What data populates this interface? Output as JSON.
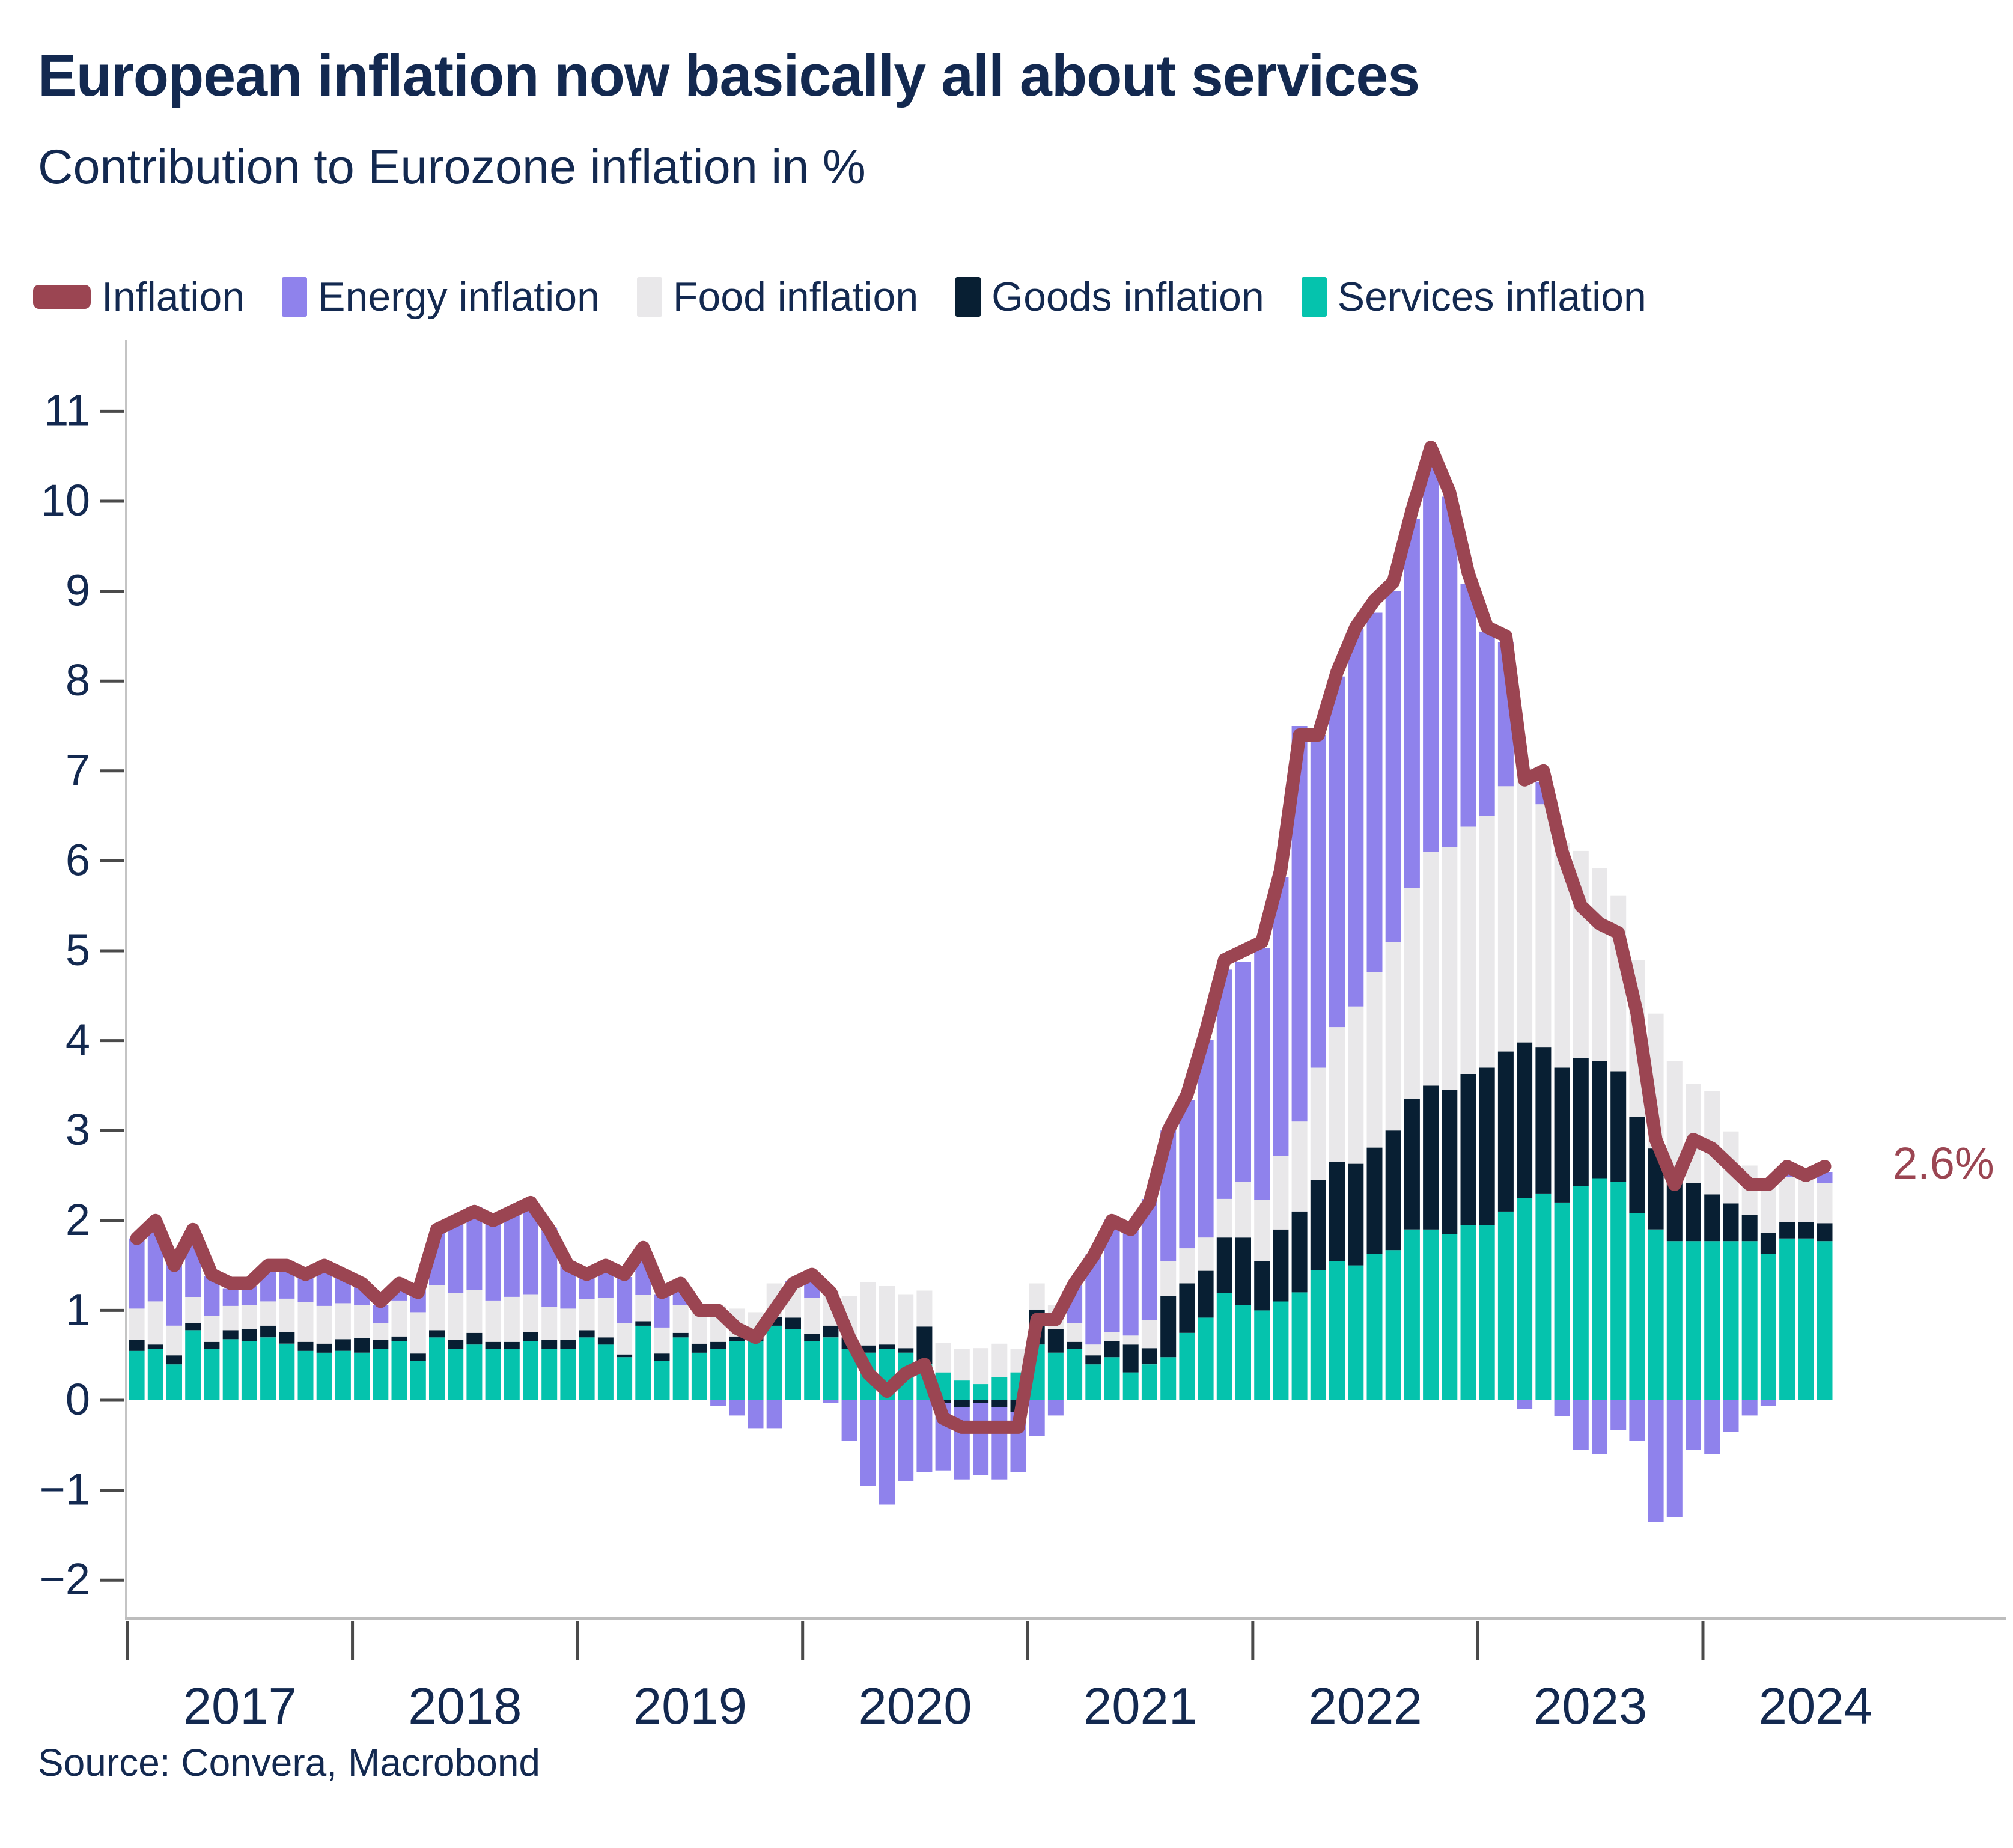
{
  "header": {
    "title": "European inflation now basically all about services",
    "subtitle": "Contribution to Eurozone inflation in %"
  },
  "legend": {
    "items": [
      {
        "label": "Inflation",
        "color": "#9b4552",
        "marker": "line"
      },
      {
        "label": "Energy inflation",
        "color": "#8f82ec",
        "marker": "box"
      },
      {
        "label": "Food inflation",
        "color": "#e9e8ea",
        "marker": "box"
      },
      {
        "label": "Goods inflation",
        "color": "#081f33",
        "marker": "box"
      },
      {
        "label": "Services inflation",
        "color": "#05c3ad",
        "marker": "box"
      }
    ]
  },
  "annotation": {
    "latest_value_label": "2.6%",
    "color": "#9b4552"
  },
  "source_text": "Source: Convera, Macrobond",
  "chart_data": {
    "type": "bar",
    "stacked": true,
    "title": "European inflation now basically all about services",
    "subtitle": "Contribution to Eurozone inflation in %",
    "ylabel": "Contribution to Eurozone inflation in %",
    "grid": false,
    "legend_position": "top",
    "ylim": [
      -2.43,
      11.77
    ],
    "yticks": [
      11,
      10,
      9,
      8,
      7,
      6,
      5,
      4,
      3,
      2,
      1,
      0,
      -1,
      -2
    ],
    "x_year_labels": [
      "2017",
      "2018",
      "2019",
      "2020",
      "2021",
      "2022",
      "2023",
      "2024"
    ],
    "x": [
      "2017-01",
      "2017-02",
      "2017-03",
      "2017-04",
      "2017-05",
      "2017-06",
      "2017-07",
      "2017-08",
      "2017-09",
      "2017-10",
      "2017-11",
      "2017-12",
      "2018-01",
      "2018-02",
      "2018-03",
      "2018-04",
      "2018-05",
      "2018-06",
      "2018-07",
      "2018-08",
      "2018-09",
      "2018-10",
      "2018-11",
      "2018-12",
      "2019-01",
      "2019-02",
      "2019-03",
      "2019-04",
      "2019-05",
      "2019-06",
      "2019-07",
      "2019-08",
      "2019-09",
      "2019-10",
      "2019-11",
      "2019-12",
      "2020-01",
      "2020-02",
      "2020-03",
      "2020-04",
      "2020-05",
      "2020-06",
      "2020-07",
      "2020-08",
      "2020-09",
      "2020-10",
      "2020-11",
      "2020-12",
      "2021-01",
      "2021-02",
      "2021-03",
      "2021-04",
      "2021-05",
      "2021-06",
      "2021-07",
      "2021-08",
      "2021-09",
      "2021-10",
      "2021-11",
      "2021-12",
      "2022-01",
      "2022-02",
      "2022-03",
      "2022-04",
      "2022-05",
      "2022-06",
      "2022-07",
      "2022-08",
      "2022-09",
      "2022-10",
      "2022-11",
      "2022-12",
      "2023-01",
      "2023-02",
      "2023-03",
      "2023-04",
      "2023-05",
      "2023-06",
      "2023-07",
      "2023-08",
      "2023-09",
      "2023-10",
      "2023-11",
      "2023-12",
      "2024-01",
      "2024-02",
      "2024-03",
      "2024-04",
      "2024-05",
      "2024-06",
      "2024-07"
    ],
    "series": [
      {
        "name": "Services inflation",
        "color": "#05c3ad",
        "values": [
          0.55,
          0.57,
          0.4,
          0.78,
          0.57,
          0.68,
          0.66,
          0.7,
          0.63,
          0.55,
          0.53,
          0.55,
          0.53,
          0.57,
          0.66,
          0.44,
          0.7,
          0.57,
          0.62,
          0.57,
          0.57,
          0.66,
          0.57,
          0.57,
          0.7,
          0.62,
          0.48,
          0.83,
          0.44,
          0.7,
          0.53,
          0.57,
          0.66,
          0.66,
          0.83,
          0.79,
          0.66,
          0.7,
          0.57,
          0.53,
          0.57,
          0.53,
          0.4,
          0.31,
          0.22,
          0.18,
          0.26,
          0.31,
          0.62,
          0.53,
          0.57,
          0.4,
          0.48,
          0.31,
          0.4,
          0.48,
          0.75,
          0.92,
          1.19,
          1.06,
          1.0,
          1.1,
          1.2,
          1.45,
          1.55,
          1.5,
          1.63,
          1.67,
          1.9,
          1.9,
          1.85,
          1.95,
          1.95,
          2.1,
          2.25,
          2.3,
          2.2,
          2.38,
          2.47,
          2.43,
          2.08,
          1.9,
          1.77,
          1.77,
          1.77,
          1.77,
          1.77,
          1.63,
          1.8,
          1.8,
          1.77
        ]
      },
      {
        "name": "Goods inflation",
        "color": "#081f33",
        "values": [
          0.12,
          0.05,
          0.1,
          0.08,
          0.08,
          0.1,
          0.13,
          0.13,
          0.13,
          0.1,
          0.1,
          0.13,
          0.16,
          0.1,
          0.05,
          0.08,
          0.08,
          0.1,
          0.13,
          0.08,
          0.08,
          0.1,
          0.1,
          0.1,
          0.08,
          0.08,
          0.03,
          0.05,
          0.08,
          0.05,
          0.1,
          0.08,
          0.05,
          0.03,
          0.1,
          0.13,
          0.08,
          0.13,
          0.13,
          0.08,
          0.05,
          0.05,
          0.42,
          -0.03,
          -0.08,
          -0.03,
          -0.08,
          -0.13,
          0.39,
          0.26,
          0.08,
          0.1,
          0.18,
          0.31,
          0.18,
          0.68,
          0.55,
          0.52,
          0.62,
          0.75,
          0.55,
          0.8,
          0.9,
          1.0,
          1.1,
          1.13,
          1.18,
          1.33,
          1.45,
          1.6,
          1.6,
          1.68,
          1.75,
          1.78,
          1.73,
          1.63,
          1.5,
          1.43,
          1.3,
          1.23,
          1.07,
          0.9,
          0.75,
          0.65,
          0.52,
          0.42,
          0.29,
          0.23,
          0.18,
          0.18,
          0.2
        ]
      },
      {
        "name": "Food inflation",
        "color": "#e9e8ea",
        "values": [
          0.35,
          0.48,
          0.33,
          0.29,
          0.29,
          0.27,
          0.27,
          0.27,
          0.37,
          0.44,
          0.42,
          0.4,
          0.37,
          0.19,
          0.4,
          0.46,
          0.5,
          0.52,
          0.48,
          0.46,
          0.5,
          0.42,
          0.37,
          0.35,
          0.35,
          0.44,
          0.35,
          0.29,
          0.29,
          0.31,
          0.37,
          0.4,
          0.31,
          0.29,
          0.37,
          0.39,
          0.4,
          0.4,
          0.46,
          0.7,
          0.65,
          0.6,
          0.4,
          0.33,
          0.35,
          0.4,
          0.37,
          0.26,
          0.29,
          0.27,
          0.21,
          0.12,
          0.1,
          0.1,
          0.31,
          0.39,
          0.39,
          0.37,
          0.43,
          0.62,
          0.68,
          0.82,
          1.0,
          1.25,
          1.5,
          1.75,
          1.95,
          2.1,
          2.35,
          2.6,
          2.7,
          2.75,
          2.8,
          2.95,
          3.05,
          2.7,
          2.5,
          2.3,
          2.15,
          1.95,
          1.75,
          1.5,
          1.25,
          1.1,
          1.15,
          0.8,
          0.55,
          0.55,
          0.5,
          0.48,
          0.45
        ]
      },
      {
        "name": "Energy inflation",
        "color": "#8f82ec",
        "values": [
          0.78,
          0.9,
          0.72,
          0.73,
          0.44,
          0.19,
          0.21,
          0.39,
          0.38,
          0.29,
          0.45,
          0.28,
          0.21,
          0.2,
          0.19,
          0.25,
          0.59,
          0.77,
          0.92,
          0.89,
          0.92,
          1.03,
          0.88,
          0.53,
          0.26,
          0.35,
          0.51,
          0.51,
          0.37,
          0.16,
          0.05,
          -0.06,
          -0.17,
          -0.31,
          -0.31,
          0.02,
          0.19,
          -0.03,
          -0.45,
          -0.95,
          -1.16,
          -0.9,
          -0.8,
          -0.75,
          -0.8,
          -0.8,
          -0.8,
          -0.67,
          -0.4,
          -0.17,
          0.42,
          1.0,
          1.25,
          1.2,
          1.35,
          1.45,
          1.65,
          2.2,
          2.55,
          2.45,
          2.8,
          3.1,
          4.4,
          3.7,
          3.9,
          4.2,
          4.0,
          3.9,
          4.1,
          4.3,
          3.9,
          2.7,
          2.05,
          1.6,
          -0.1,
          0.25,
          -0.18,
          -0.55,
          -0.6,
          -0.33,
          -0.45,
          -1.35,
          -1.3,
          -0.55,
          -0.6,
          -0.35,
          -0.17,
          -0.06,
          0.03,
          0.02,
          0.12
        ]
      }
    ],
    "line_series": {
      "name": "Inflation",
      "color": "#9b4552",
      "values": [
        1.8,
        2.0,
        1.5,
        1.9,
        1.4,
        1.3,
        1.3,
        1.5,
        1.5,
        1.4,
        1.5,
        1.4,
        1.3,
        1.1,
        1.3,
        1.2,
        1.9,
        2.0,
        2.1,
        2.0,
        2.1,
        2.2,
        1.9,
        1.5,
        1.4,
        1.5,
        1.4,
        1.7,
        1.2,
        1.3,
        1.0,
        1.0,
        0.8,
        0.7,
        1.0,
        1.3,
        1.4,
        1.2,
        0.7,
        0.3,
        0.1,
        0.3,
        0.4,
        -0.2,
        -0.3,
        -0.3,
        -0.3,
        -0.3,
        0.9,
        0.9,
        1.3,
        1.6,
        2.0,
        1.9,
        2.2,
        3.0,
        3.4,
        4.1,
        4.9,
        5.0,
        5.1,
        5.9,
        7.4,
        7.4,
        8.1,
        8.6,
        8.9,
        9.1,
        9.9,
        10.6,
        10.1,
        9.2,
        8.6,
        8.5,
        6.9,
        7.0,
        6.1,
        5.5,
        5.3,
        5.2,
        4.3,
        2.9,
        2.4,
        2.9,
        2.8,
        2.6,
        2.4,
        2.4,
        2.6,
        2.5,
        2.6
      ]
    },
    "annotation": {
      "text": "2.6%",
      "attached_to": "last line point"
    }
  }
}
